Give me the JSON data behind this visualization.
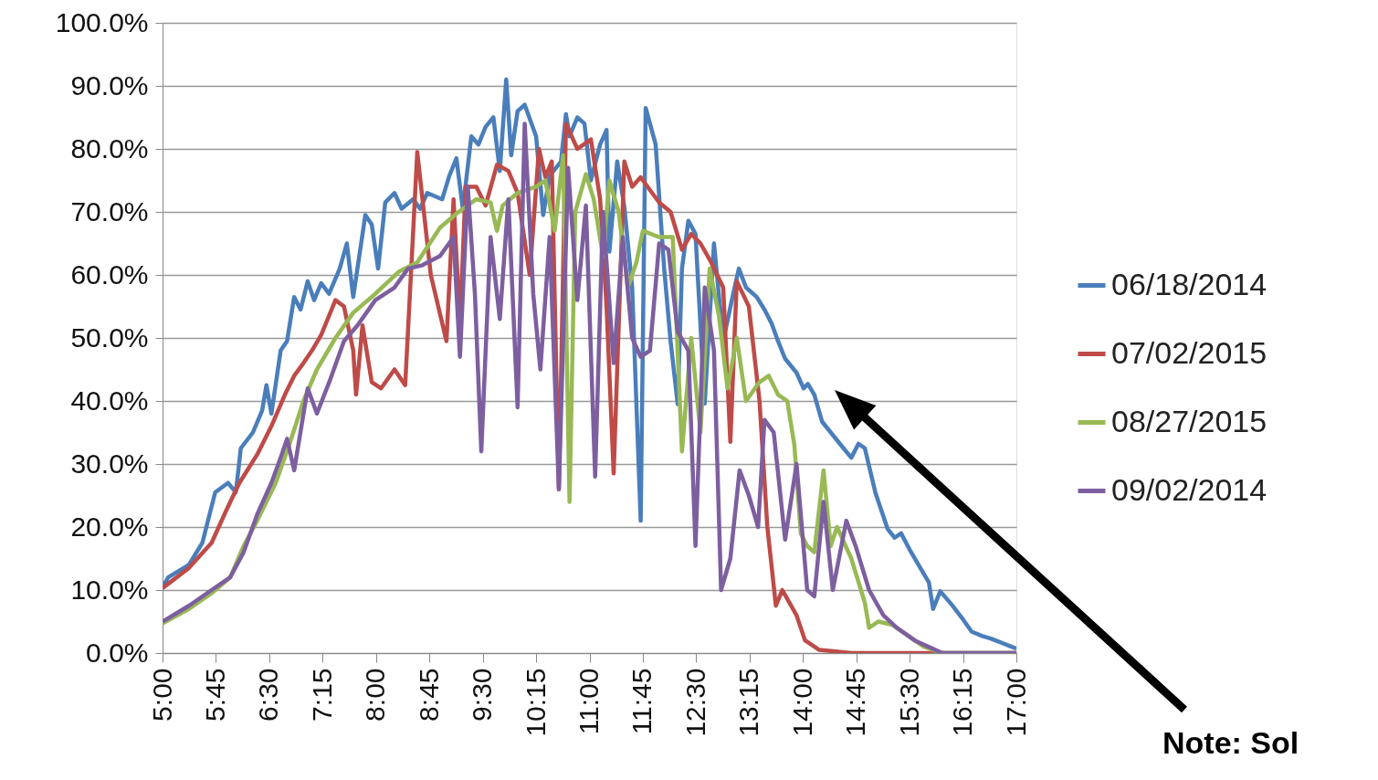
{
  "chart_data": {
    "type": "line",
    "xlim": [
      5,
      17
    ],
    "xticks": [
      {
        "value": 5,
        "label": "5:00"
      },
      {
        "value": 5.75,
        "label": "5:45"
      },
      {
        "value": 6.5,
        "label": "6:30"
      },
      {
        "value": 7.25,
        "label": "7:15"
      },
      {
        "value": 8,
        "label": "8:00"
      },
      {
        "value": 8.75,
        "label": "8:45"
      },
      {
        "value": 9.5,
        "label": "9:30"
      },
      {
        "value": 10.25,
        "label": "10:15"
      },
      {
        "value": 11,
        "label": "11:00"
      },
      {
        "value": 11.75,
        "label": "11:45"
      },
      {
        "value": 12.5,
        "label": "12:30"
      },
      {
        "value": 13.25,
        "label": "13:15"
      },
      {
        "value": 14,
        "label": "14:00"
      },
      {
        "value": 14.75,
        "label": "14:45"
      },
      {
        "value": 15.5,
        "label": "15:30"
      },
      {
        "value": 16.25,
        "label": "16:15"
      },
      {
        "value": 17,
        "label": "17:00"
      }
    ],
    "ylim": [
      0,
      100
    ],
    "yticks": [
      {
        "value": 0,
        "label": "0.0%"
      },
      {
        "value": 10,
        "label": "10.0%"
      },
      {
        "value": 20,
        "label": "20.0%"
      },
      {
        "value": 30,
        "label": "30.0%"
      },
      {
        "value": 40,
        "label": "40.0%"
      },
      {
        "value": 50,
        "label": "50.0%"
      },
      {
        "value": 60,
        "label": "60.0%"
      },
      {
        "value": 70,
        "label": "70.0%"
      },
      {
        "value": 80,
        "label": "80.0%"
      },
      {
        "value": 90,
        "label": "90.0%"
      },
      {
        "value": 100,
        "label": "100.0%"
      }
    ],
    "grid": "y",
    "legend": "right",
    "annotations": [
      "Note: Sol"
    ],
    "series": [
      {
        "name": "06/18/2014",
        "color": "#4a7ebb",
        "x": [
          5.0,
          5.08,
          5.37,
          5.56,
          5.74,
          5.92,
          6.03,
          6.1,
          6.27,
          6.4,
          6.46,
          6.53,
          6.66,
          6.75,
          6.85,
          6.94,
          7.04,
          7.13,
          7.23,
          7.34,
          7.49,
          7.59,
          7.68,
          7.85,
          7.94,
          8.03,
          8.13,
          8.26,
          8.36,
          8.52,
          8.62,
          8.72,
          8.93,
          9.03,
          9.13,
          9.22,
          9.34,
          9.44,
          9.54,
          9.65,
          9.74,
          9.83,
          9.9,
          9.99,
          10.09,
          10.25,
          10.35,
          10.44,
          10.6,
          10.67,
          10.72,
          10.83,
          10.93,
          11.02,
          11.15,
          11.24,
          11.28,
          11.39,
          11.49,
          11.6,
          11.72,
          11.79,
          11.93,
          12.05,
          12.14,
          12.24,
          12.3,
          12.39,
          12.49,
          12.62,
          12.75,
          12.88,
          13.01,
          13.1,
          13.2,
          13.35,
          13.46,
          13.56,
          13.65,
          13.75,
          13.91,
          14.01,
          14.07,
          14.16,
          14.27,
          14.42,
          14.57,
          14.68,
          14.78,
          14.87,
          15.02,
          15.19,
          15.29,
          15.38,
          15.51,
          15.66,
          15.77,
          15.83,
          15.93,
          16.09,
          16.24,
          16.37,
          16.52,
          16.64,
          17.0
        ],
        "values": [
          10.5,
          12,
          14,
          17.5,
          25.5,
          27,
          25.5,
          32.5,
          35,
          38.5,
          42.5,
          38,
          48,
          49.5,
          56.5,
          54.5,
          59,
          56,
          58.7,
          57,
          61,
          65,
          56.5,
          69.5,
          68,
          61,
          71.5,
          73,
          70.5,
          72,
          70.5,
          73,
          72,
          75.7,
          78.5,
          70.5,
          82,
          80.7,
          83.5,
          85,
          76.5,
          91,
          79,
          86,
          87,
          82,
          69.5,
          75.7,
          78,
          85.5,
          82,
          85,
          84,
          75,
          80.7,
          83,
          63.7,
          78,
          70.8,
          58,
          21,
          86.5,
          80.7,
          61,
          49.5,
          39.5,
          61,
          68.6,
          66.5,
          39.6,
          65,
          49.5,
          56.5,
          61,
          58,
          56.5,
          54.5,
          52.3,
          49.5,
          46.7,
          44.5,
          42,
          42.7,
          41,
          36.7,
          34.6,
          32.5,
          31,
          33.2,
          32.5,
          25.4,
          19.7,
          18.3,
          19,
          16.2,
          13.3,
          11.2,
          7,
          9.8,
          7.7,
          5.5,
          3.4,
          2.7,
          2.3,
          0.7
        ]
      },
      {
        "name": "07/02/2015",
        "color": "#be4b48",
        "x": [
          5.0,
          5.37,
          5.69,
          5.89,
          6.08,
          6.33,
          6.53,
          6.72,
          6.85,
          6.98,
          7.1,
          7.23,
          7.43,
          7.55,
          7.68,
          7.72,
          7.81,
          7.94,
          8.07,
          8.26,
          8.41,
          8.58,
          8.77,
          8.99,
          9.09,
          9.18,
          9.26,
          9.41,
          9.54,
          9.7,
          9.86,
          9.99,
          10.16,
          10.29,
          10.38,
          10.47,
          10.57,
          10.67,
          10.83,
          11.02,
          11.15,
          11.24,
          11.34,
          11.49,
          11.6,
          11.72,
          11.88,
          11.98,
          12.14,
          12.3,
          12.43,
          12.56,
          12.71,
          12.88,
          12.98,
          13.07,
          13.24,
          13.39,
          13.5,
          13.62,
          13.71,
          13.91,
          14.03,
          14.23,
          14.68,
          17.0
        ],
        "values": [
          10.3,
          13.5,
          17.5,
          22.5,
          27,
          31.5,
          36,
          41,
          44,
          46,
          48,
          50.5,
          56,
          55,
          48,
          41,
          52,
          43,
          42,
          45,
          42.5,
          79.5,
          60,
          49.5,
          72,
          52,
          74,
          74,
          71,
          77.5,
          76.5,
          73,
          60,
          80,
          75.5,
          78,
          26,
          84,
          80,
          81.5,
          72,
          55,
          28.5,
          78,
          74,
          75.5,
          73,
          71.5,
          70,
          64,
          66.5,
          65,
          62,
          58,
          33.5,
          59,
          55,
          40,
          20,
          7.5,
          10,
          6,
          2,
          0.5,
          0,
          0
        ]
      },
      {
        "name": "08/27/2015",
        "color": "#98b954",
        "x": [
          5.0,
          5.37,
          5.69,
          5.95,
          6.14,
          6.33,
          6.59,
          6.78,
          6.98,
          7.17,
          7.43,
          7.68,
          7.99,
          8.32,
          8.58,
          8.9,
          9.16,
          9.41,
          9.61,
          9.7,
          9.78,
          9.99,
          10.25,
          10.38,
          10.51,
          10.63,
          10.72,
          10.8,
          10.95,
          11.06,
          11.19,
          11.28,
          11.41,
          11.54,
          11.66,
          11.75,
          11.98,
          12.17,
          12.3,
          12.43,
          12.56,
          12.69,
          12.82,
          12.94,
          13.07,
          13.2,
          13.39,
          13.52,
          13.65,
          13.78,
          13.88,
          13.97,
          14.06,
          14.16,
          14.29,
          14.39,
          14.48,
          14.68,
          14.87,
          14.93,
          15.06,
          15.25,
          15.45,
          15.7,
          15.96,
          17.0
        ],
        "values": [
          4.7,
          7,
          9.5,
          12,
          17,
          21,
          27,
          33,
          40,
          45,
          50,
          54,
          57,
          60.5,
          62,
          67.5,
          70,
          72,
          71.5,
          67,
          71,
          73,
          74,
          75,
          67,
          79,
          24,
          70,
          76,
          72,
          63,
          75,
          70,
          58,
          62,
          67,
          66,
          66,
          32,
          50,
          35,
          61,
          53.5,
          42,
          50,
          40,
          43,
          44,
          41,
          40,
          33,
          19,
          17,
          16,
          29,
          17,
          20,
          15,
          8,
          4,
          5,
          4.5,
          3,
          1,
          0,
          0
        ]
      },
      {
        "name": "09/02/2014",
        "color": "#7d5fa0",
        "x": [
          5.0,
          5.37,
          5.69,
          5.95,
          6.14,
          6.33,
          6.53,
          6.66,
          6.75,
          6.85,
          7.04,
          7.17,
          7.36,
          7.55,
          7.74,
          7.99,
          8.26,
          8.45,
          8.64,
          8.9,
          9.09,
          9.18,
          9.29,
          9.39,
          9.48,
          9.61,
          9.74,
          9.86,
          9.99,
          10.09,
          10.21,
          10.31,
          10.44,
          10.57,
          10.7,
          10.83,
          10.95,
          11.08,
          11.19,
          11.34,
          11.47,
          11.6,
          11.72,
          11.85,
          11.98,
          12.11,
          12.24,
          12.39,
          12.49,
          12.62,
          12.75,
          12.85,
          12.98,
          13.11,
          13.24,
          13.37,
          13.46,
          13.59,
          13.75,
          13.91,
          14.06,
          14.16,
          14.29,
          14.42,
          14.61,
          14.74,
          14.93,
          15.13,
          15.32,
          15.57,
          15.96,
          17.0
        ],
        "values": [
          5,
          7.5,
          10,
          12,
          16,
          22,
          27,
          31,
          34,
          29,
          42,
          38,
          43.5,
          49.5,
          52,
          56,
          58,
          61,
          61.5,
          63,
          66,
          47,
          74,
          57,
          32,
          66,
          53,
          72,
          39,
          84,
          57,
          45,
          66,
          26,
          77,
          56,
          71,
          28,
          70,
          46,
          66,
          50,
          47,
          48,
          65,
          64,
          51,
          48,
          17,
          58,
          48,
          10,
          15,
          29,
          25,
          20,
          37,
          35,
          18,
          30,
          10,
          9,
          24,
          10,
          21,
          17,
          10,
          6,
          4,
          2,
          0,
          0
        ]
      }
    ]
  }
}
